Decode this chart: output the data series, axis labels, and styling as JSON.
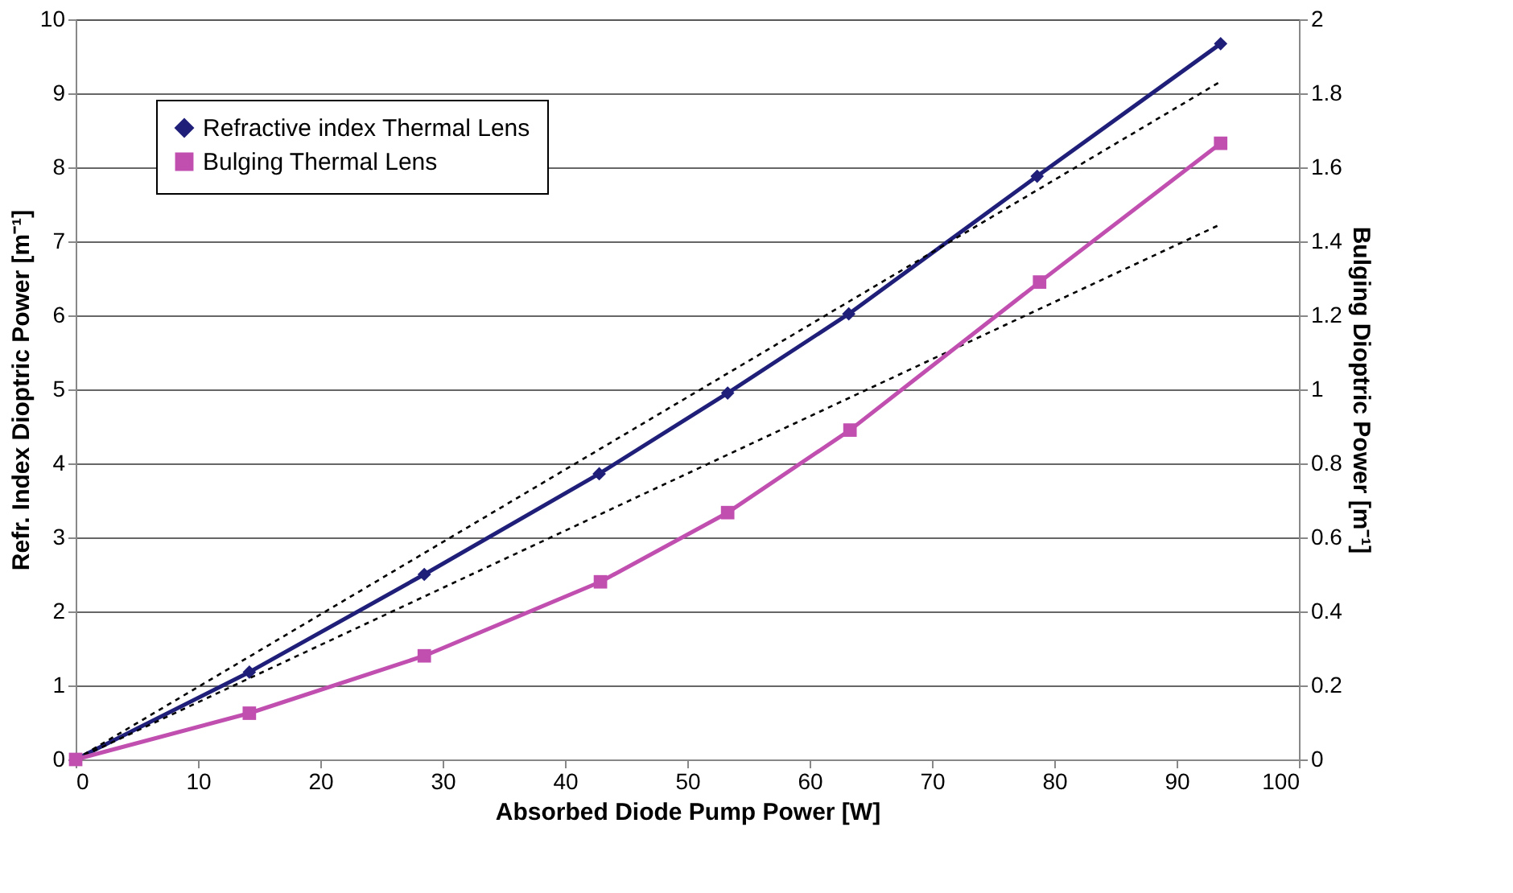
{
  "chart_data": {
    "type": "line",
    "xlabel": "Absorbed Diode Pump Power [W]",
    "ylabel": "Refr. Index Dioptric Power [m⁻¹]",
    "y2label": "Bulging Dioptric Power [m⁻¹]",
    "xlim": [
      0,
      100
    ],
    "xticks": [
      0,
      10,
      20,
      30,
      40,
      50,
      60,
      70,
      80,
      90,
      100
    ],
    "ylim": [
      0,
      10
    ],
    "yticks": [
      0,
      1,
      2,
      3,
      4,
      5,
      6,
      7,
      8,
      9,
      10
    ],
    "y2lim": [
      0,
      2
    ],
    "y2ticks": [
      0,
      0.2,
      0.4,
      0.6,
      0.8,
      1,
      1.2,
      1.4,
      1.6,
      1.8,
      2
    ],
    "grid": "y",
    "legend": "top left",
    "series": [
      {
        "name": "Refractive index Thermal Lens",
        "color": "#1f1f7a",
        "marker": "diamond",
        "line_style": "solid",
        "x": [
          0,
          14.2,
          28.5,
          42.8,
          53.3,
          63.2,
          78.6,
          93.6
        ],
        "values": [
          0,
          1.18,
          2.5,
          3.86,
          4.95,
          6.02,
          7.88,
          9.67
        ]
      },
      {
        "name": "Bulging Thermal Lens",
        "axis": "y2",
        "color": "#c04fb0",
        "marker": "square",
        "line_style": "solid",
        "x": [
          0,
          14.2,
          28.5,
          42.9,
          53.3,
          63.3,
          78.8,
          93.6
        ],
        "values": [
          0,
          0.125,
          0.28,
          0.48,
          0.667,
          0.89,
          1.29,
          1.665
        ]
      },
      {
        "color": "#000000",
        "marker": "none",
        "line_style": "dotted",
        "x": [
          0,
          93.6
        ],
        "values": [
          0,
          9.16
        ]
      },
      {
        "color": "#000000",
        "marker": "none",
        "line_style": "dotted",
        "x": [
          0,
          93.6
        ],
        "values": [
          0,
          7.23
        ]
      }
    ]
  }
}
